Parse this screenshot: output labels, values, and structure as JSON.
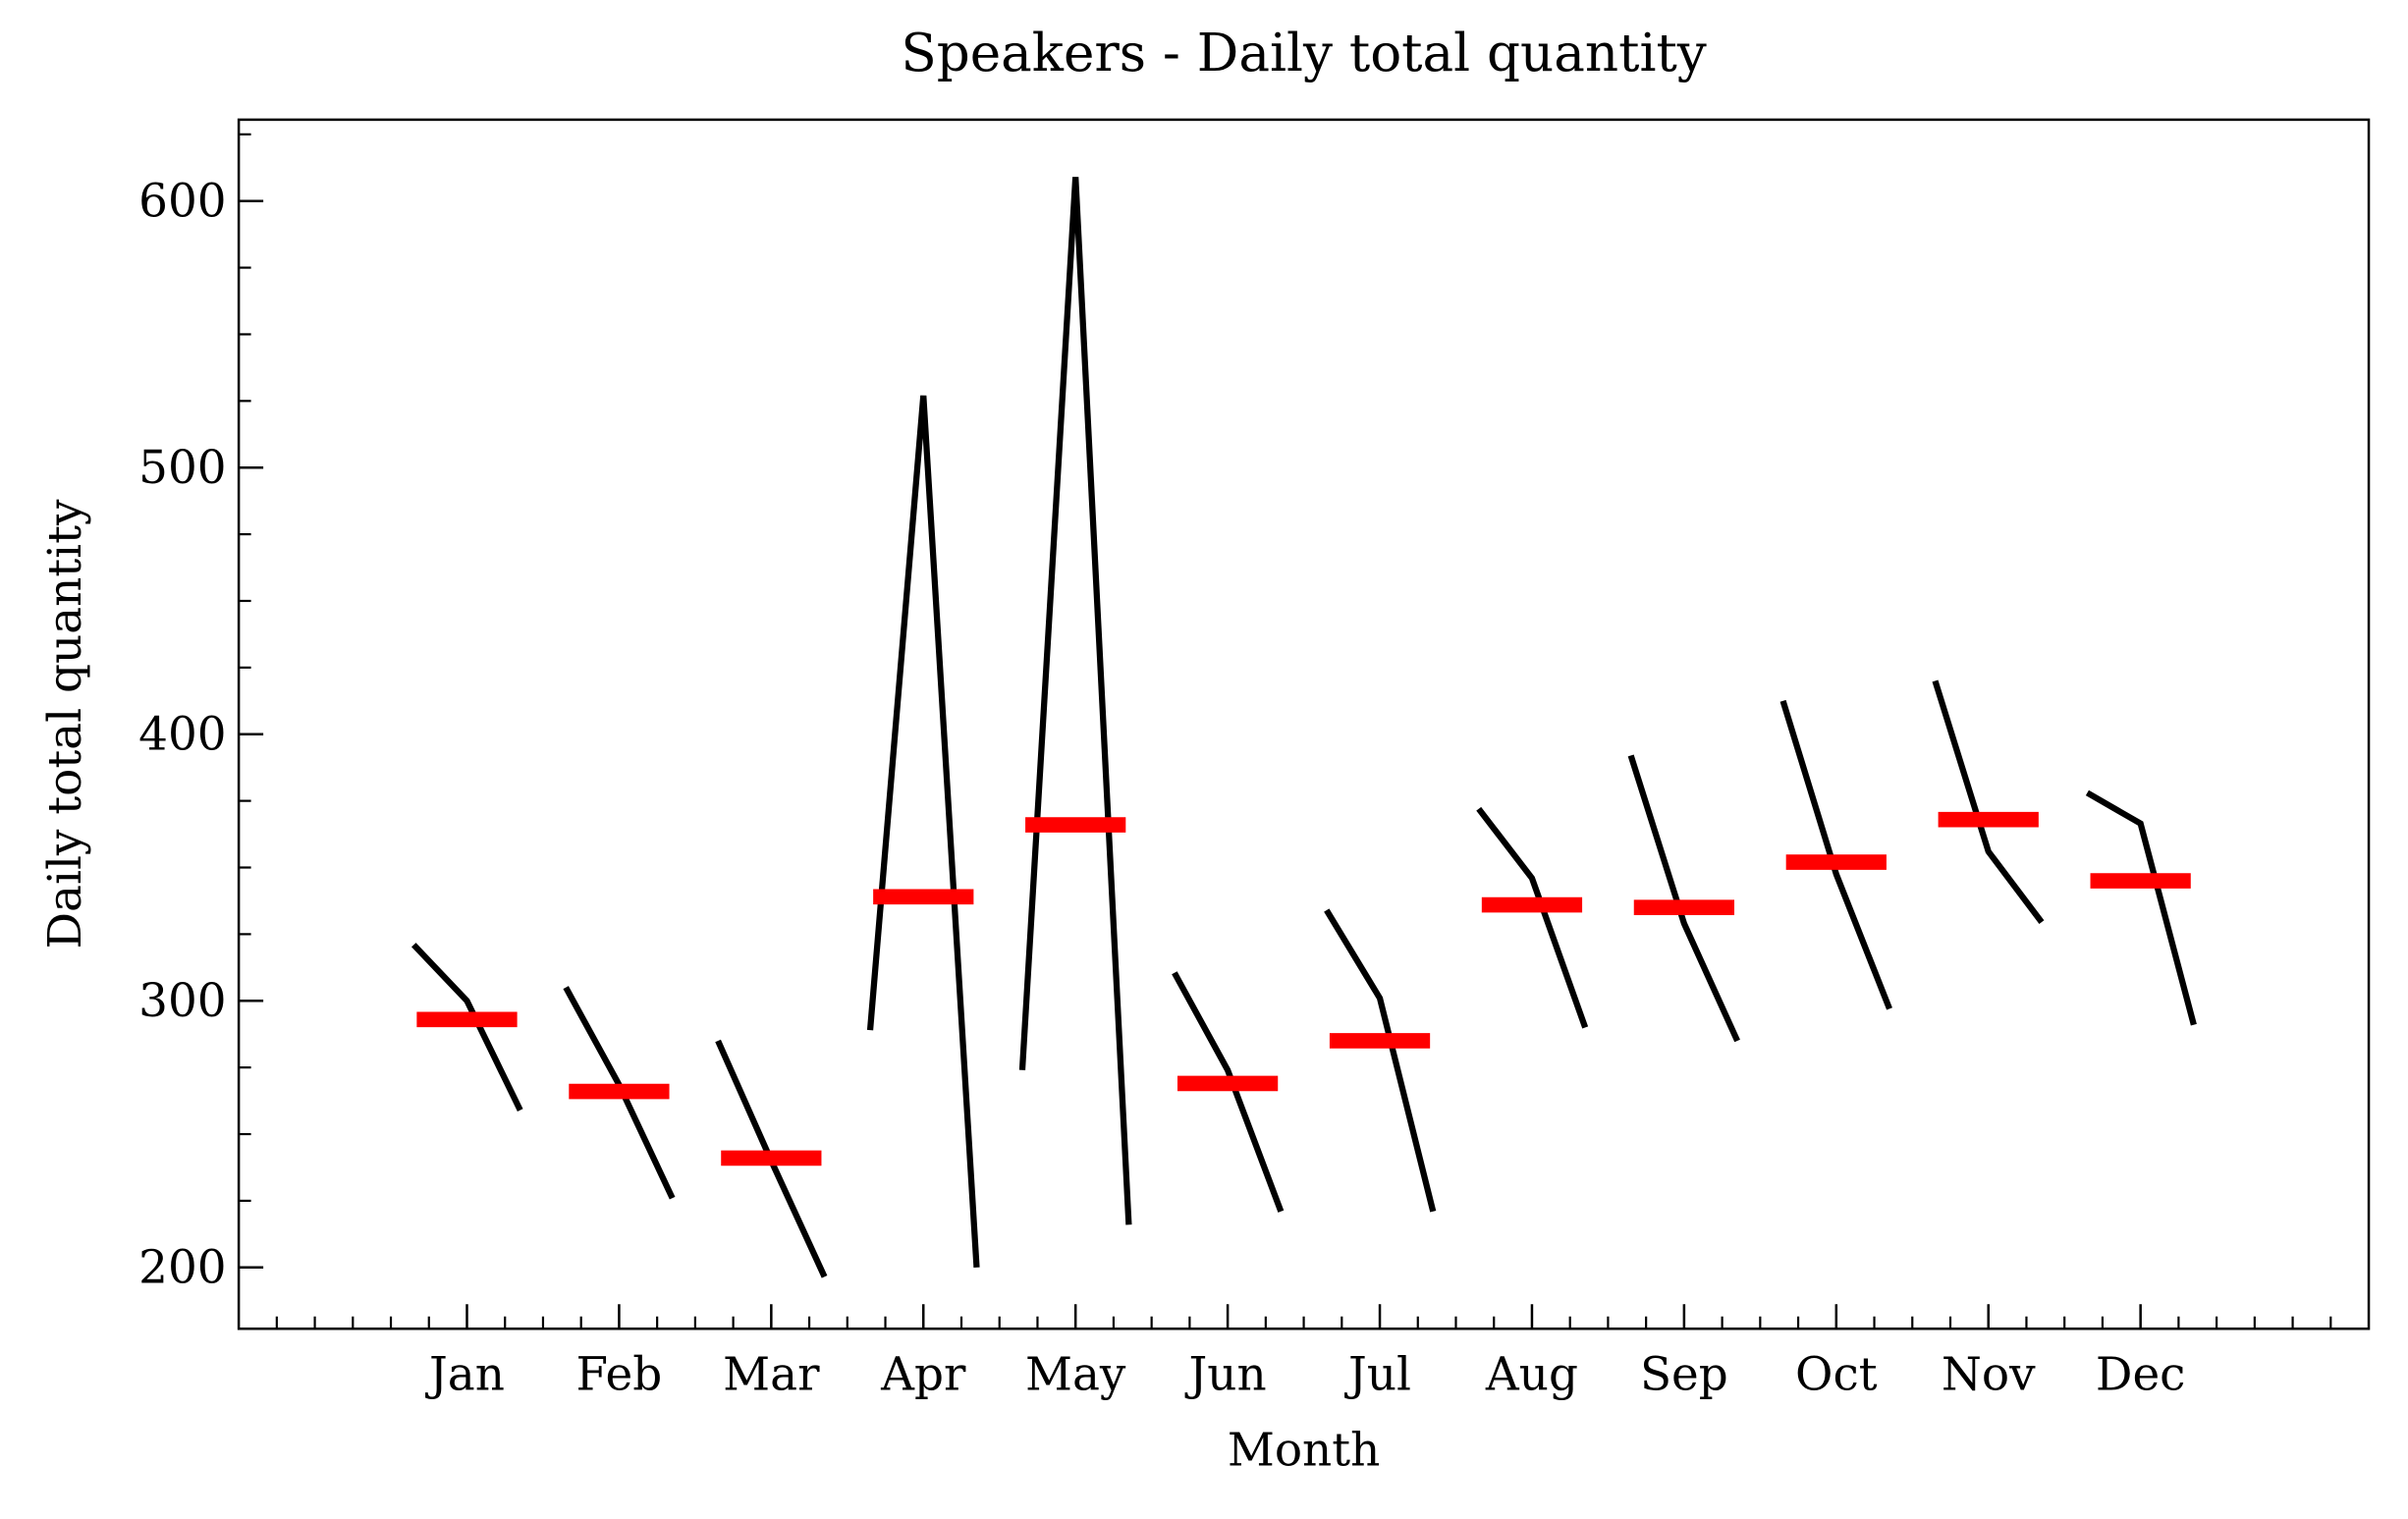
{
  "chart_data": {
    "type": "month_plot",
    "title": "Speakers - Daily total quantity",
    "x_label": "Month",
    "y_label": "Daily total quantity",
    "categories": [
      "Jan",
      "Feb",
      "Mar",
      "Apr",
      "May",
      "Jun",
      "Jul",
      "Aug",
      "Sep",
      "Oct",
      "Nov",
      "Dec"
    ],
    "values": [
      [
        321,
        300,
        259
      ],
      [
        305,
        268.5,
        226
      ],
      [
        285,
        240,
        196.5
      ],
      [
        289,
        527,
        200
      ],
      [
        274,
        609,
        216
      ],
      [
        310.5,
        274,
        221
      ],
      [
        334,
        301,
        221
      ],
      [
        372,
        346,
        290
      ],
      [
        392,
        329,
        285
      ],
      [
        412.5,
        347.5,
        297
      ],
      [
        420,
        356,
        329.5
      ],
      [
        378,
        366.5,
        291
      ]
    ],
    "means": [
      293,
      266,
      241,
      339,
      366,
      269,
      285,
      336,
      335,
      352,
      368,
      345
    ],
    "line_color": "#000000",
    "mean_color": "#ff0000",
    "ylim": [
      177,
      630.5
    ],
    "yticks": [
      200,
      300,
      400,
      500,
      600
    ],
    "yminor_ticks": [
      200,
      225,
      250,
      275,
      300,
      325,
      350,
      375,
      400,
      425,
      450,
      475,
      500,
      525,
      550,
      575,
      600,
      625
    ]
  }
}
